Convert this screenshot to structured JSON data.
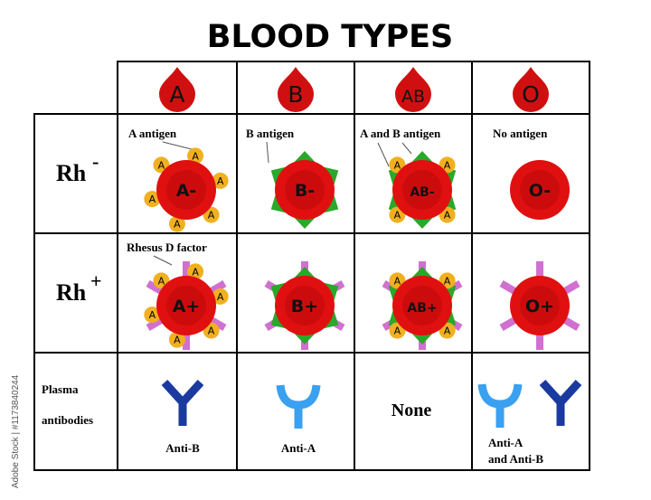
{
  "title": "BLOOD TYPES",
  "types": [
    "A",
    "B",
    "AB",
    "O"
  ],
  "rows": {
    "rh_neg": {
      "label": "Rh",
      "sign": "-"
    },
    "rh_pos": {
      "label": "Rh",
      "sign": "+"
    },
    "plasma": {
      "line1": "Plasma",
      "line2": "antibodies"
    }
  },
  "annotations": {
    "a_antigen": "A antigen",
    "b_antigen": "B antigen",
    "ab_antigen": "A and B antigen",
    "no_antigen": "No antigen",
    "rhesus": "Rhesus D factor"
  },
  "cells_neg": [
    "A-",
    "B-",
    "AB-",
    "O-"
  ],
  "cells_pos": [
    "A+",
    "B+",
    "AB+",
    "O+"
  ],
  "antibodies": {
    "a": "Anti-B",
    "b": "Anti-A",
    "ab": "None",
    "o_line1": "Anti-A",
    "o_line2": "and Anti-B"
  },
  "watermark": "Adobe Stock | #1173840244",
  "colors": {
    "cell": "#e01010",
    "a_antigen": "#f0b020",
    "b_antigen": "#2aa82a",
    "rh_factor": "#d070d0",
    "anti_a": "#3aa0f0",
    "anti_b": "#1a3aa0"
  }
}
